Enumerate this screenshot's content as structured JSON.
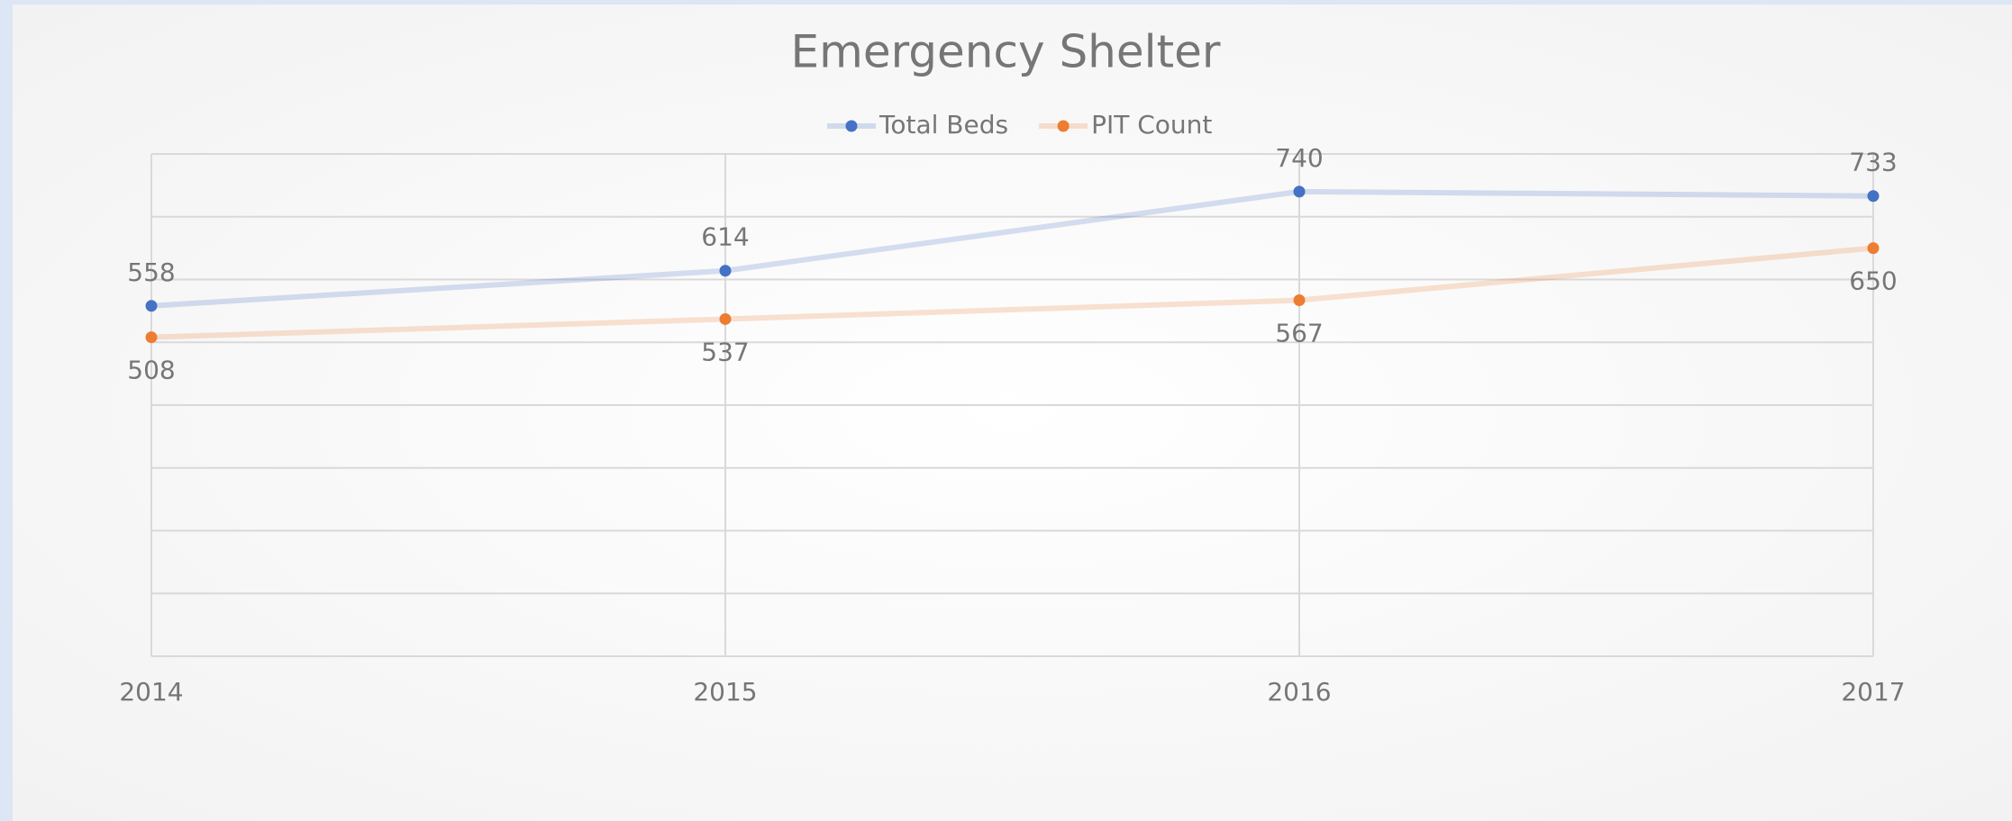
{
  "chart_data": {
    "type": "line",
    "title": "Emergency Shelter",
    "categories": [
      "2014",
      "2015",
      "2016",
      "2017"
    ],
    "series": [
      {
        "name": "Total Beds",
        "color": "#4472c4",
        "values": [
          558,
          614,
          740,
          733
        ]
      },
      {
        "name": "PIT Count",
        "color": "#ed7d31",
        "values": [
          508,
          537,
          567,
          650
        ]
      }
    ],
    "ylim": [
      0,
      800
    ],
    "yticks": [
      0,
      100,
      200,
      300,
      400,
      500,
      600,
      700,
      800
    ],
    "grid": true
  }
}
